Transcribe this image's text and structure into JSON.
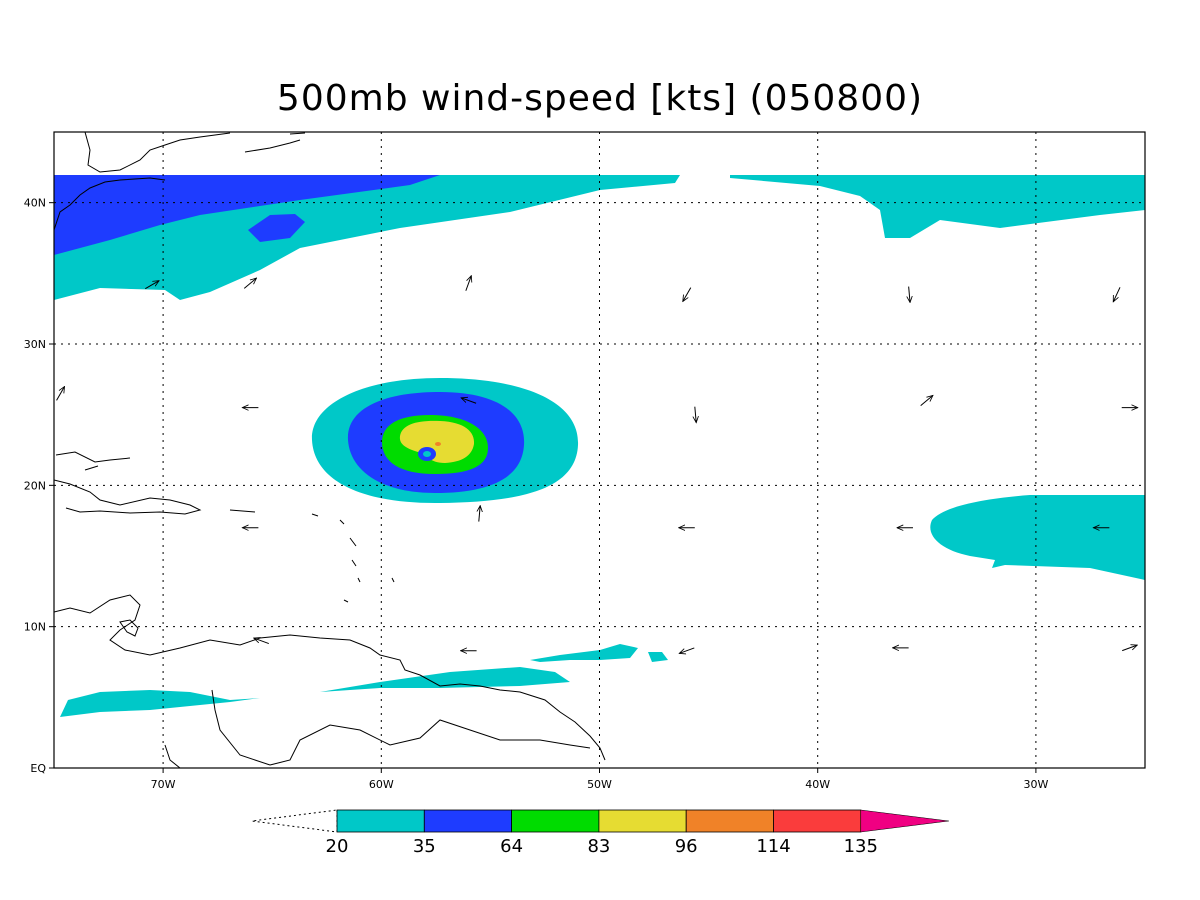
{
  "title": "500mb wind-speed [kts] (050800)",
  "map": {
    "lon_range": [
      -75,
      -25
    ],
    "lat_range": [
      0,
      45
    ],
    "x_ticks": [
      {
        "lon": -70,
        "label": "70W"
      },
      {
        "lon": -60,
        "label": "60W"
      },
      {
        "lon": -50,
        "label": "50W"
      },
      {
        "lon": -40,
        "label": "40W"
      },
      {
        "lon": -30,
        "label": "30W"
      }
    ],
    "y_ticks": [
      {
        "lat": 0,
        "label": "EQ"
      },
      {
        "lat": 10,
        "label": "10N"
      },
      {
        "lat": 20,
        "label": "20N"
      },
      {
        "lat": 30,
        "label": "30N"
      },
      {
        "lat": 40,
        "label": "40N"
      }
    ],
    "grid": "dotted",
    "contour_levels": [
      20,
      35,
      64,
      83,
      96,
      114,
      135
    ],
    "colorbar": {
      "labels": [
        "20",
        "35",
        "64",
        "83",
        "96",
        "114",
        "135"
      ],
      "colors": [
        "#00c8c8",
        "#1e3cff",
        "#00dc00",
        "#e6dc32",
        "#f08228",
        "#fa3c3c",
        "#f00082"
      ],
      "below_min": "white (open triangle)",
      "above_max": "#f00082 (triangle)"
    },
    "features": {
      "storm_center": {
        "lon": -58,
        "lat": 22.3
      },
      "wind_vectors": [
        {
          "lon": -70.5,
          "lat": 34.2,
          "dir": 30
        },
        {
          "lon": -66,
          "lat": 34.3,
          "dir": 40
        },
        {
          "lon": -56,
          "lat": 34.3,
          "dir": 70
        },
        {
          "lon": -46,
          "lat": 33.5,
          "dir": 240
        },
        {
          "lon": -35.8,
          "lat": 33.5,
          "dir": 275
        },
        {
          "lon": -26.3,
          "lat": 33.5,
          "dir": 245
        },
        {
          "lon": -74.7,
          "lat": 26.5,
          "dir": 60
        },
        {
          "lon": -66,
          "lat": 25.5,
          "dir": 180
        },
        {
          "lon": -56,
          "lat": 26.0,
          "dir": 160
        },
        {
          "lon": -45.6,
          "lat": 25.0,
          "dir": 275
        },
        {
          "lon": -35,
          "lat": 26.0,
          "dir": 40
        },
        {
          "lon": -25.7,
          "lat": 25.5,
          "dir": 0
        },
        {
          "lon": -66,
          "lat": 17.0,
          "dir": 180
        },
        {
          "lon": -55.5,
          "lat": 18.0,
          "dir": 85
        },
        {
          "lon": -46,
          "lat": 17.0,
          "dir": 180
        },
        {
          "lon": -36,
          "lat": 17.0,
          "dir": 180
        },
        {
          "lon": -27,
          "lat": 17.0,
          "dir": 180
        },
        {
          "lon": -65.5,
          "lat": 9.0,
          "dir": 160
        },
        {
          "lon": -56,
          "lat": 8.3,
          "dir": 180
        },
        {
          "lon": -46,
          "lat": 8.3,
          "dir": 200
        },
        {
          "lon": -36.2,
          "lat": 8.5,
          "dir": 180
        },
        {
          "lon": -25.7,
          "lat": 8.5,
          "dir": 20
        }
      ]
    }
  }
}
